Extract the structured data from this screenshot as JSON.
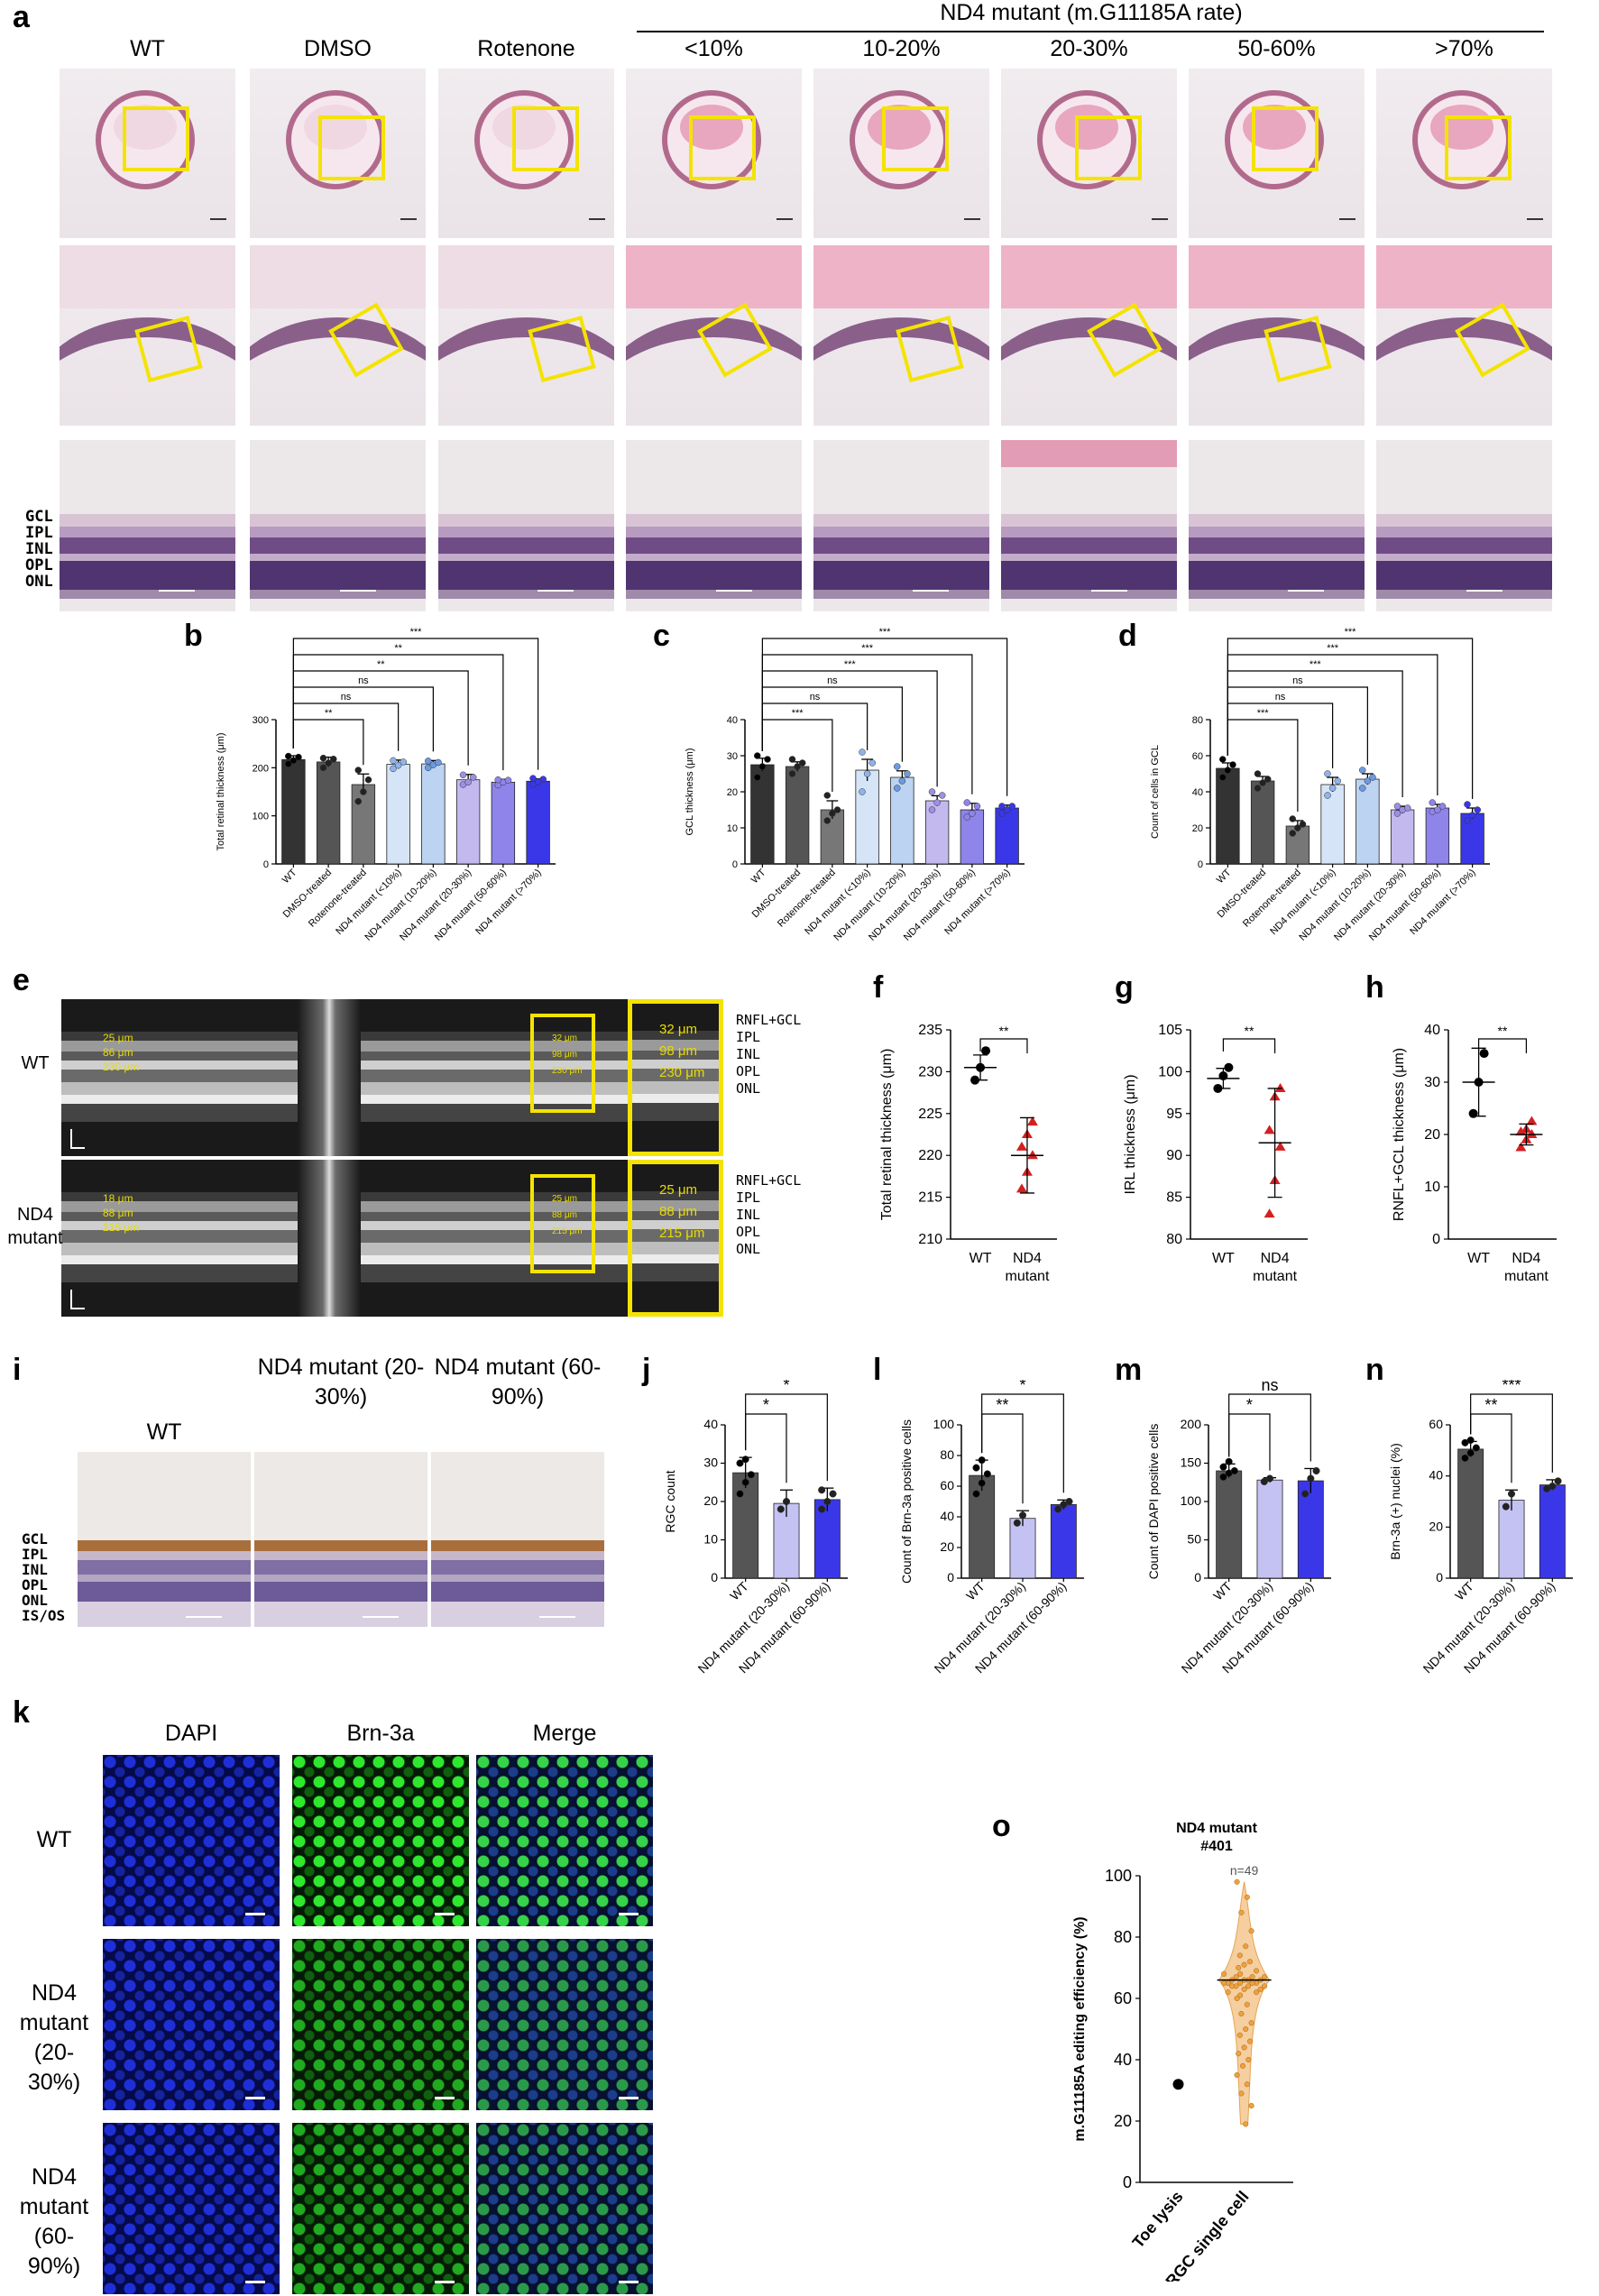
{
  "labels": {
    "a": "a",
    "b": "b",
    "c": "c",
    "d": "d",
    "e": "e",
    "f": "f",
    "g": "g",
    "h": "h",
    "i": "i",
    "j": "j",
    "k": "k",
    "l": "l",
    "m": "m",
    "n": "n",
    "o": "o"
  },
  "panel_a": {
    "columns": [
      "WT",
      "DMSO",
      "Rotenone",
      "<10%",
      "10-20%",
      "20-30%",
      "50-60%",
      ">70%"
    ],
    "group_header": "ND4 mutant (m.G11185A rate)",
    "layers": [
      "GCL",
      "IPL",
      "INL",
      "OPL",
      "ONL"
    ]
  },
  "panel_e": {
    "rows": [
      "WT",
      "ND4 mutant"
    ],
    "layer_labels": [
      "RNFL+GCL",
      "IPL",
      "INL",
      "OPL",
      "ONL"
    ],
    "wt_values_left": [
      "25 μm",
      "86 μm",
      "230 μm"
    ],
    "wt_values_box": [
      "32 μm",
      "98 μm",
      "230 μm"
    ],
    "wt_values_zoom": [
      "32 μm",
      "98 μm",
      "230 μm"
    ],
    "mut_values_left": [
      "18 μm",
      "88 μm",
      "215 μm"
    ],
    "mut_values_box": [
      "25 μm",
      "88 μm",
      "215 μm"
    ],
    "mut_values_zoom": [
      "25 μm",
      "88 μm",
      "215 μm"
    ]
  },
  "panel_i": {
    "columns": [
      "WT",
      "ND4 mutant (20-30%)",
      "ND4 mutant (60-90%)"
    ],
    "layers": [
      "GCL",
      "IPL",
      "INL",
      "OPL",
      "ONL",
      "IS/OS"
    ]
  },
  "panel_k": {
    "columns": [
      "DAPI",
      "Brn-3a",
      "Merge"
    ],
    "rows": [
      "WT",
      "ND4 mutant (20-30%)",
      "ND4 mutant (60-90%)"
    ]
  },
  "chart_data": [
    {
      "id": "b",
      "type": "bar",
      "ylabel": "Total retinal thickness (μm)",
      "ylim": [
        0,
        300
      ],
      "yticks": [
        0,
        100,
        200,
        300
      ],
      "categories": [
        "WT",
        "DMSO-treated",
        "Rotenone-treated",
        "ND4 mutant (<10%)",
        "ND4 mutant (10-20%)",
        "ND4 mutant (20-30%)",
        "ND4 mutant (50-60%)",
        "ND4 mutant (>70%)"
      ],
      "values": [
        217,
        212,
        165,
        207,
        208,
        175,
        170,
        172
      ],
      "errors": [
        8,
        10,
        22,
        9,
        7,
        11,
        6,
        5
      ],
      "colors": [
        "#333333",
        "#555555",
        "#777777",
        "#d6e4f8",
        "#bcd3f2",
        "#c4b9ef",
        "#8f84ea",
        "#3a37e8"
      ],
      "points": [
        [
          208,
          215,
          222,
          224
        ],
        [
          200,
          210,
          218,
          220
        ],
        [
          130,
          150,
          175,
          195
        ],
        [
          198,
          205,
          212,
          215
        ],
        [
          200,
          206,
          211,
          214
        ],
        [
          165,
          170,
          180,
          185
        ],
        [
          164,
          170,
          174,
          175
        ],
        [
          165,
          171,
          176,
          178
        ]
      ],
      "sig": [
        {
          "a": 0,
          "b": 2,
          "label": "**"
        },
        {
          "a": 0,
          "b": 3,
          "label": "ns"
        },
        {
          "a": 0,
          "b": 4,
          "label": "ns"
        },
        {
          "a": 0,
          "b": 5,
          "label": "**"
        },
        {
          "a": 0,
          "b": 6,
          "label": "**"
        },
        {
          "a": 0,
          "b": 7,
          "label": "***"
        }
      ]
    },
    {
      "id": "c",
      "type": "bar",
      "ylabel": "GCL thickness (μm)",
      "ylim": [
        0,
        40
      ],
      "yticks": [
        0,
        10,
        20,
        30,
        40
      ],
      "categories": [
        "WT",
        "DMSO-treated",
        "Rotenone-treated",
        "ND4 mutant (<10%)",
        "ND4 mutant (10-20%)",
        "ND4 mutant (20-30%)",
        "ND4 mutant (50-60%)",
        "ND4 mutant (>70%)"
      ],
      "values": [
        27.5,
        27,
        15,
        26,
        24,
        17.5,
        15,
        15.5
      ],
      "errors": [
        1.8,
        1.3,
        2.5,
        3,
        1.8,
        1.4,
        1.8,
        0.8
      ],
      "colors": [
        "#333333",
        "#555555",
        "#777777",
        "#d6e4f8",
        "#bcd3f2",
        "#c4b9ef",
        "#8f84ea",
        "#3a37e8"
      ],
      "points": [
        [
          24,
          27,
          29,
          30
        ],
        [
          25,
          27,
          28,
          29
        ],
        [
          12,
          14,
          15,
          19
        ],
        [
          20,
          25,
          28,
          31
        ],
        [
          21,
          23,
          25,
          27
        ],
        [
          15,
          17,
          19,
          20
        ],
        [
          13,
          14,
          16,
          17
        ],
        [
          14,
          15,
          16,
          16
        ]
      ],
      "sig": [
        {
          "a": 0,
          "b": 2,
          "label": "***"
        },
        {
          "a": 0,
          "b": 3,
          "label": "ns"
        },
        {
          "a": 0,
          "b": 4,
          "label": "ns"
        },
        {
          "a": 0,
          "b": 5,
          "label": "***"
        },
        {
          "a": 0,
          "b": 6,
          "label": "***"
        },
        {
          "a": 0,
          "b": 7,
          "label": "***"
        }
      ]
    },
    {
      "id": "d",
      "type": "bar",
      "ylabel": "Count of cells in GCL",
      "ylim": [
        0,
        80
      ],
      "yticks": [
        0,
        20,
        40,
        60,
        80
      ],
      "categories": [
        "WT",
        "DMSO-treated",
        "Rotenone-treated",
        "ND4 mutant (<10%)",
        "ND4 mutant (10-20%)",
        "ND4 mutant (20-30%)",
        "ND4 mutant (50-60%)",
        "ND4 mutant (>70%)"
      ],
      "values": [
        53,
        46,
        21,
        44,
        47,
        30,
        31,
        28
      ],
      "errors": [
        3,
        2.5,
        3,
        4,
        3,
        2,
        2,
        3
      ],
      "colors": [
        "#333333",
        "#555555",
        "#777777",
        "#d6e4f8",
        "#bcd3f2",
        "#c4b9ef",
        "#8f84ea",
        "#3a37e8"
      ],
      "points": [
        [
          48,
          52,
          55,
          58
        ],
        [
          42,
          45,
          47,
          50
        ],
        [
          17,
          20,
          22,
          25
        ],
        [
          38,
          42,
          46,
          50
        ],
        [
          42,
          46,
          48,
          52
        ],
        [
          28,
          30,
          31,
          32
        ],
        [
          29,
          30,
          32,
          34
        ],
        [
          24,
          27,
          30,
          33
        ]
      ],
      "sig": [
        {
          "a": 0,
          "b": 2,
          "label": "***"
        },
        {
          "a": 0,
          "b": 3,
          "label": "ns"
        },
        {
          "a": 0,
          "b": 4,
          "label": "ns"
        },
        {
          "a": 0,
          "b": 5,
          "label": "***"
        },
        {
          "a": 0,
          "b": 6,
          "label": "***"
        },
        {
          "a": 0,
          "b": 7,
          "label": "***"
        }
      ]
    },
    {
      "id": "f",
      "type": "scatter",
      "ylabel": "Total retinal thickness (μm)",
      "ylim": [
        210,
        235
      ],
      "yticks": [
        210,
        215,
        220,
        225,
        230,
        235
      ],
      "categories": [
        "WT",
        "ND4 mutant"
      ],
      "means": [
        230.5,
        220
      ],
      "sd": [
        1.5,
        4.5
      ],
      "colors": [
        "#000000",
        "#d42020"
      ],
      "points": [
        [
          229,
          230.5,
          232.5
        ],
        [
          216,
          218,
          220,
          221,
          222.5,
          224
        ]
      ],
      "sig": {
        "label": "**"
      }
    },
    {
      "id": "g",
      "type": "scatter",
      "ylabel": "IRL thickness (μm)",
      "ylim": [
        80,
        105
      ],
      "yticks": [
        80,
        85,
        90,
        95,
        100,
        105
      ],
      "categories": [
        "WT",
        "ND4 mutant"
      ],
      "means": [
        99.2,
        91.5
      ],
      "sd": [
        1.2,
        6.5
      ],
      "colors": [
        "#000000",
        "#d42020"
      ],
      "points": [
        [
          98,
          99.5,
          100.5
        ],
        [
          83,
          87,
          91,
          93,
          97,
          98
        ]
      ],
      "sig": {
        "label": "**"
      }
    },
    {
      "id": "h",
      "type": "scatter",
      "ylabel": "RNFL+GCL thickness (μm)",
      "ylim": [
        0,
        40
      ],
      "yticks": [
        0,
        10,
        20,
        30,
        40
      ],
      "categories": [
        "WT",
        "ND4 mutant"
      ],
      "means": [
        30,
        20
      ],
      "sd": [
        6.5,
        2
      ],
      "colors": [
        "#000000",
        "#d42020"
      ],
      "points": [
        [
          24,
          30,
          35.5
        ],
        [
          17.5,
          19,
          20,
          20.5,
          21,
          22.5
        ]
      ],
      "sig": {
        "label": "**"
      }
    },
    {
      "id": "j",
      "type": "bar",
      "ylabel": "RGC count",
      "ylim": [
        0,
        40
      ],
      "yticks": [
        0,
        10,
        20,
        30,
        40
      ],
      "categories": [
        "WT",
        "ND4 mutant (20-30%)",
        "ND4 mutant (60-90%)"
      ],
      "values": [
        27.5,
        19.5,
        20.5
      ],
      "errors": [
        4,
        3.5,
        3
      ],
      "colors": [
        "#555555",
        "#c4c2f2",
        "#3a37e8"
      ],
      "points": [
        [
          22,
          25,
          27,
          30,
          31
        ],
        [
          18,
          20
        ],
        [
          18,
          20,
          22,
          23
        ]
      ],
      "sig": [
        {
          "a": 0,
          "b": 1,
          "label": "*"
        },
        {
          "a": 0,
          "b": 2,
          "label": "*"
        }
      ]
    },
    {
      "id": "l",
      "type": "bar",
      "ylabel": "Count of Brn-3a positive cells",
      "ylim": [
        0,
        100
      ],
      "yticks": [
        0,
        20,
        40,
        60,
        80,
        100
      ],
      "categories": [
        "WT",
        "ND4 mutant (20-30%)",
        "ND4 mutant (60-90%)"
      ],
      "values": [
        67,
        39,
        48
      ],
      "errors": [
        10,
        5,
        3
      ],
      "colors": [
        "#555555",
        "#c4c2f2",
        "#3a37e8"
      ],
      "points": [
        [
          55,
          62,
          68,
          72,
          77
        ],
        [
          36,
          41
        ],
        [
          45,
          48,
          50
        ]
      ],
      "sig": [
        {
          "a": 0,
          "b": 1,
          "label": "**"
        },
        {
          "a": 0,
          "b": 2,
          "label": "*"
        }
      ]
    },
    {
      "id": "m",
      "type": "bar",
      "ylabel": "Count of DAPI positive cells",
      "ylim": [
        0,
        200
      ],
      "yticks": [
        0,
        50,
        100,
        150,
        200
      ],
      "categories": [
        "WT",
        "ND4 mutant (20-30%)",
        "ND4 mutant (60-90%)"
      ],
      "values": [
        140,
        128,
        127
      ],
      "errors": [
        9,
        3,
        16
      ],
      "colors": [
        "#555555",
        "#c4c2f2",
        "#3a37e8"
      ],
      "points": [
        [
          132,
          137,
          140,
          145,
          152
        ],
        [
          126,
          130
        ],
        [
          110,
          130,
          140
        ]
      ],
      "sig": [
        {
          "a": 0,
          "b": 1,
          "label": "*"
        },
        {
          "a": 0,
          "b": 2,
          "label": "ns"
        }
      ]
    },
    {
      "id": "n",
      "type": "bar",
      "ylabel": "Brn-3a (+) nuclei (%)",
      "ylim": [
        0,
        60
      ],
      "yticks": [
        0,
        20,
        40,
        60
      ],
      "categories": [
        "WT",
        "ND4 mutant (20-30%)",
        "ND4 mutant (60-90%)"
      ],
      "values": [
        50.5,
        30.5,
        36.5
      ],
      "errors": [
        3,
        4,
        2
      ],
      "colors": [
        "#555555",
        "#c4c2f2",
        "#3a37e8"
      ],
      "points": [
        [
          47,
          49,
          51,
          53,
          54
        ],
        [
          28,
          33
        ],
        [
          35,
          36,
          38
        ]
      ],
      "sig": [
        {
          "a": 0,
          "b": 1,
          "label": "**"
        },
        {
          "a": 0,
          "b": 2,
          "label": "***"
        }
      ]
    },
    {
      "id": "o",
      "type": "scatter",
      "title": "ND4 mutant #401",
      "ylabel": "m.G11185A editing efficiency (%)",
      "ylim": [
        0,
        100
      ],
      "yticks": [
        0,
        20,
        40,
        60,
        80,
        100
      ],
      "categories": [
        "Toe lysis",
        "RGC single cell"
      ],
      "toe_value": 32,
      "n_label": "n=49",
      "rgc_values": [
        98,
        93,
        88,
        82,
        77,
        74,
        72,
        71,
        70,
        69,
        68,
        68,
        67,
        67,
        67,
        66,
        66,
        66,
        66,
        65,
        65,
        65,
        65,
        65,
        64,
        64,
        64,
        64,
        63,
        63,
        62,
        62,
        61,
        60,
        58,
        55,
        52,
        50,
        48,
        46,
        44,
        42,
        40,
        38,
        35,
        32,
        29,
        25,
        19
      ]
    }
  ]
}
